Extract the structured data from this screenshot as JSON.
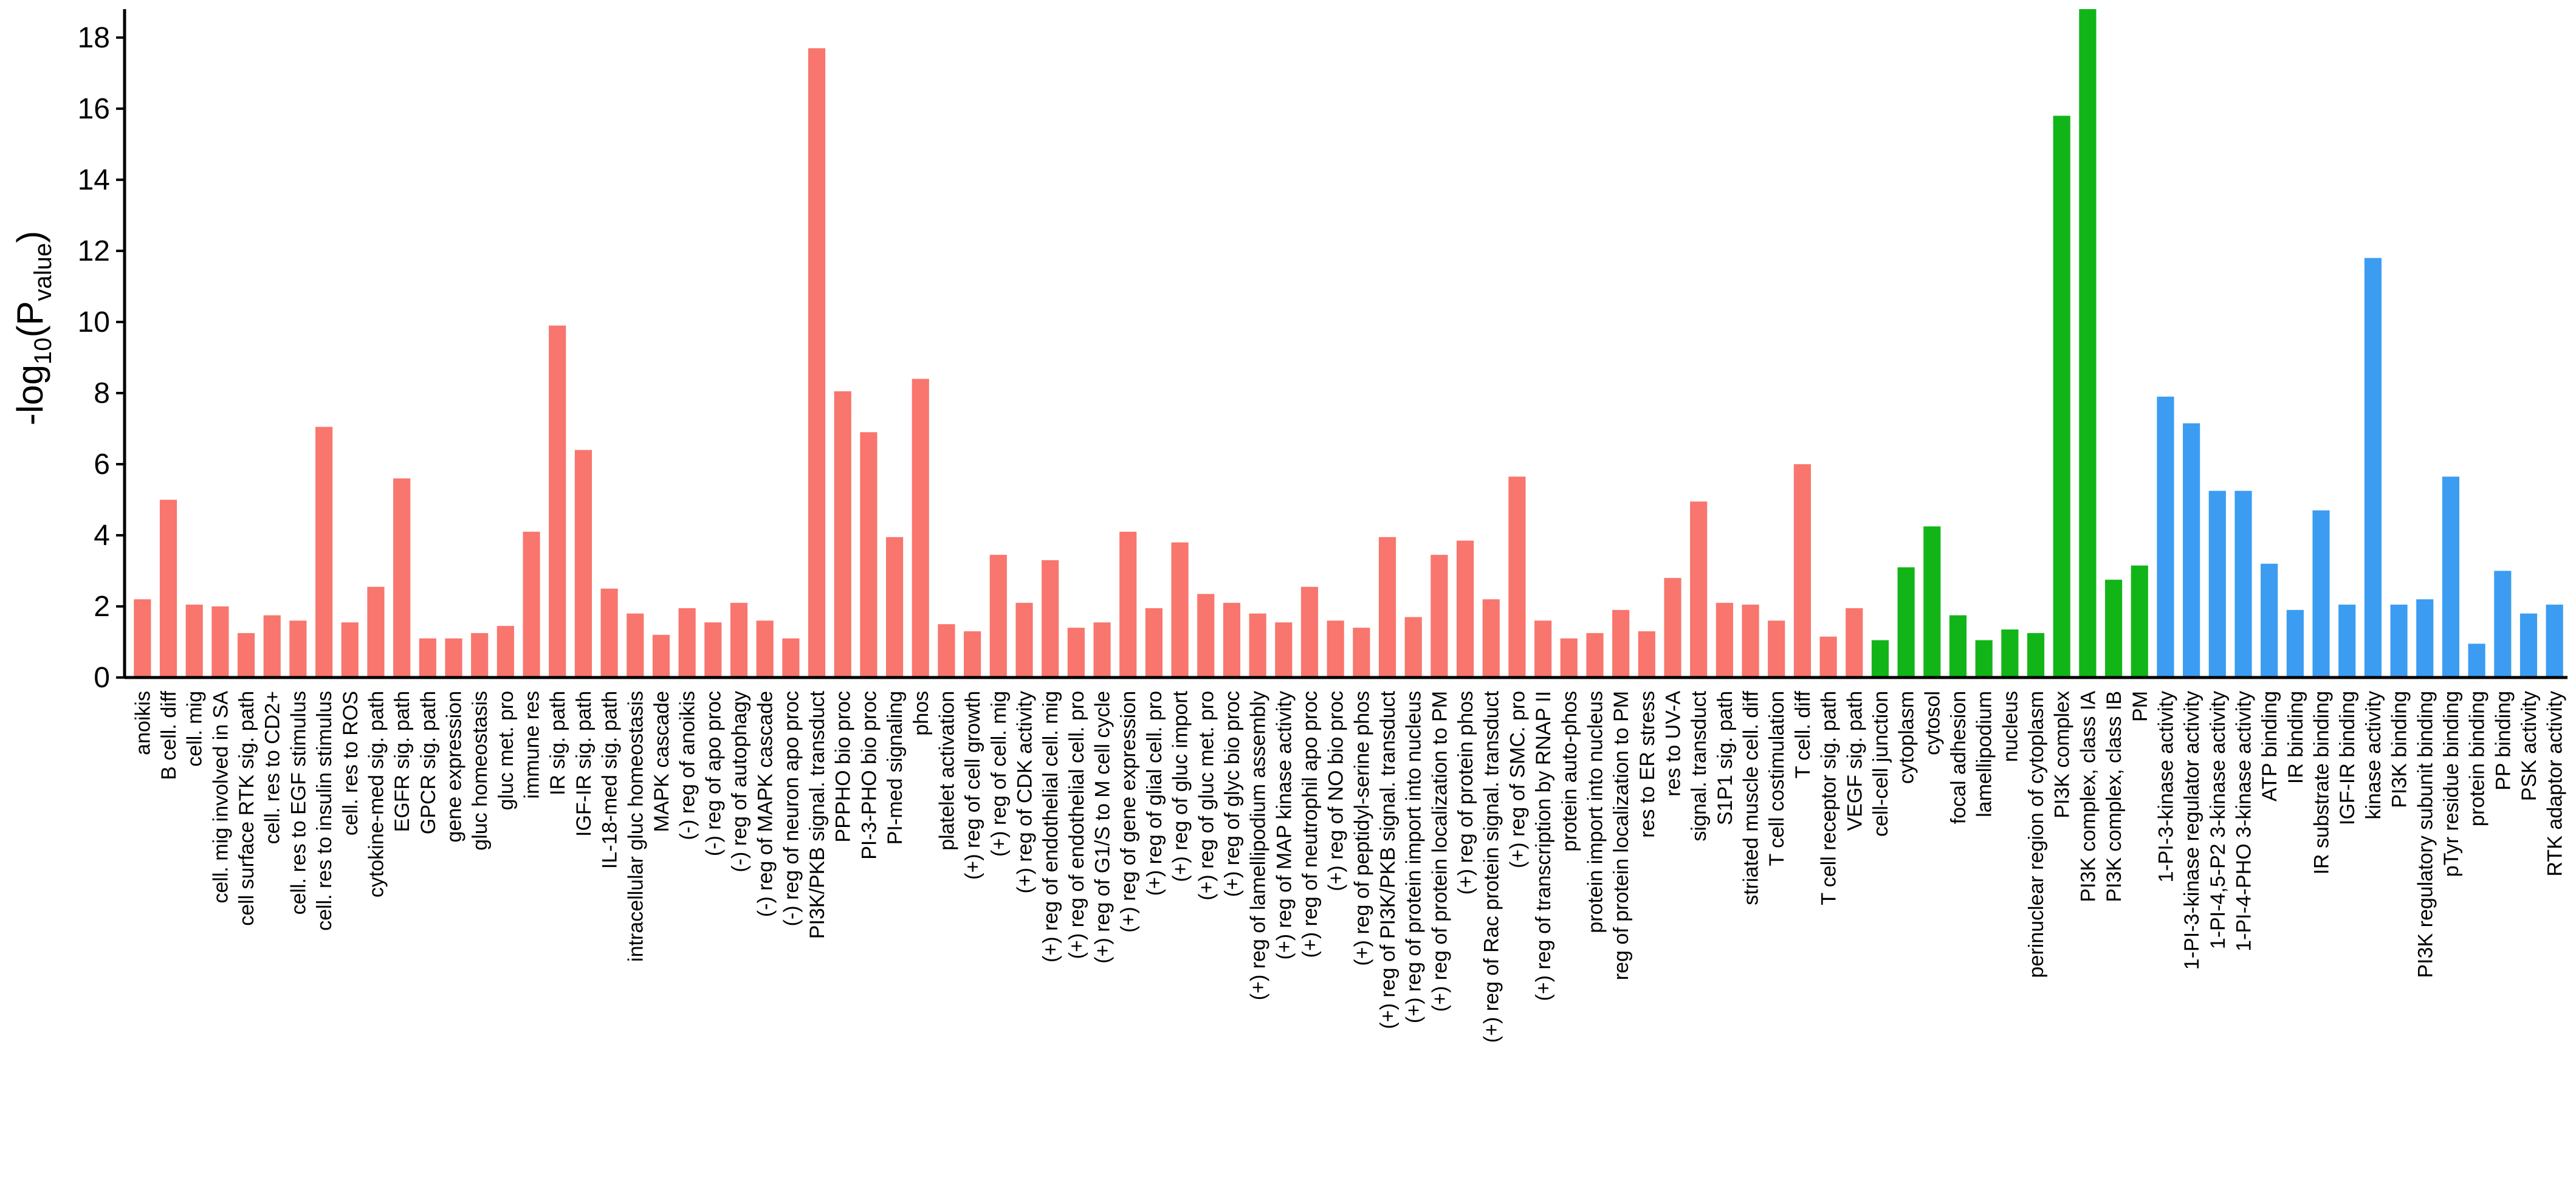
{
  "chart_data": {
    "type": "bar",
    "title": "",
    "xlabel": "",
    "ylabel": {
      "main": "-log",
      "sub_10": "10",
      "paren_open": "(P",
      "sub_value": "value",
      "paren_close": ")"
    },
    "ylim": [
      0,
      18.8
    ],
    "yticks": [
      0,
      2,
      4,
      6,
      8,
      10,
      12,
      14,
      16,
      18
    ],
    "grid": false,
    "legend": "none",
    "group_colors": {
      "red": "#f8766d",
      "green": "#12b518",
      "blue": "#3c9cf2"
    },
    "categories": [
      "anoikis",
      "B cell. diff",
      "cell. mig",
      "cell. mig involved in SA",
      "cell surface RTK sig. path",
      "cell. res to CD2+",
      "cell. res to EGF stimulus",
      "cell. res to insulin stimulus",
      "cell. res to ROS",
      "cytokine-med sig. path",
      "EGFR sig. path",
      "GPCR sig. path",
      "gene expression",
      "gluc homeostasis",
      "gluc met. pro",
      "immune res",
      "IR sig. path",
      "IGF-IR sig. path",
      "IL-18-med sig. path",
      "intracellular gluc homeostasis",
      "MAPK cascade",
      "(-) reg of anoikis",
      "(-) reg of apo proc",
      "(-) reg of autophagy",
      "(-) reg of MAPK cascade",
      "(-) reg of neuron apo proc",
      "PI3K/PKB signal. transduct",
      "PPPHO bio proc",
      "PI-3-PHO bio proc",
      "PI-med signaling",
      "phos",
      "platelet activation",
      "(+) reg of cell growth",
      "(+) reg of cell. mig",
      "(+) reg of CDK activity",
      "(+) reg of endothelial cell. mig",
      "(+) reg of endothelial cell. pro",
      "(+) reg of G1/S to M cell cycle",
      "(+) reg of gene expression",
      "(+) reg of glial cell. pro",
      "(+) reg of gluc import",
      "(+) reg of gluc met. pro",
      "(+) reg of glyc bio proc",
      "(+) reg of lamellipodium assembly",
      "(+) reg of MAP kinase activity",
      "(+) reg of neutrophil apo proc",
      "(+) reg of NO bio proc",
      "(+) reg of peptidyl-serine phos",
      "(+) reg of PI3K/PKB signal. transduct",
      "(+) reg of protein import into nucleus",
      "(+) reg of protein localization to PM",
      "(+) reg of protein phos",
      "(+) reg of Rac protein signal. transduct",
      "(+) reg of SMC. pro",
      "(+) reg of transcription by RNAP II",
      "protein auto-phos",
      "protein import into nucleus",
      "reg of protein localization to PM",
      "res to ER stress",
      "res to UV-A",
      "signal. transduct",
      "S1P1 sig. path",
      "striated muscle cell. diff",
      "T cell costimulation",
      "T cell. diff",
      "T cell receptor sig. path",
      "VEGF sig. path",
      "cell-cell junction",
      "cytoplasm",
      "cytosol",
      "focal adhesion",
      "lamellipodium",
      "nucleus",
      "perinuclear region of cytoplasm",
      "PI3K complex",
      "PI3K complex, class IA",
      "PI3K complex, class IB",
      "PM",
      "1-PI-3-kinase activity",
      "1-PI-3-kinase regulator activity",
      "1-PI-4,5-P2 3-kinase activity",
      "1-PI-4-PHO 3-kinase activity",
      "ATP binding",
      "IR binding",
      "IR substrate binding",
      "IGF-IR binding",
      "kinase activity",
      "PI3K binding",
      "PI3K regulatory subunit binding",
      "pTyr residue binding",
      "protein binding",
      "PP binding",
      "PSK activity",
      "RTK adaptor activity"
    ],
    "values": [
      2.2,
      5.0,
      2.05,
      2.0,
      1.25,
      1.75,
      1.6,
      7.05,
      1.55,
      2.55,
      5.6,
      1.1,
      1.1,
      1.25,
      1.45,
      4.1,
      9.9,
      6.4,
      2.5,
      1.8,
      1.2,
      1.95,
      1.55,
      2.1,
      1.6,
      1.1,
      17.7,
      8.05,
      6.9,
      3.95,
      8.4,
      1.5,
      1.3,
      3.45,
      2.1,
      3.3,
      1.4,
      1.55,
      4.1,
      1.95,
      3.8,
      2.35,
      2.1,
      1.8,
      1.55,
      2.55,
      1.6,
      1.4,
      3.95,
      1.7,
      3.45,
      3.85,
      2.2,
      5.65,
      1.6,
      1.1,
      1.25,
      1.9,
      1.3,
      2.8,
      4.95,
      2.1,
      2.05,
      1.6,
      6.0,
      1.15,
      1.95,
      1.05,
      3.1,
      4.25,
      1.75,
      1.05,
      1.35,
      1.25,
      15.8,
      18.8,
      2.75,
      3.15,
      7.9,
      7.15,
      5.25,
      5.25,
      3.2,
      1.9,
      4.7,
      2.05,
      11.8,
      2.05,
      2.2,
      5.65,
      0.95,
      3.0,
      1.8,
      2.05
    ],
    "groups": [
      "red",
      "red",
      "red",
      "red",
      "red",
      "red",
      "red",
      "red",
      "red",
      "red",
      "red",
      "red",
      "red",
      "red",
      "red",
      "red",
      "red",
      "red",
      "red",
      "red",
      "red",
      "red",
      "red",
      "red",
      "red",
      "red",
      "red",
      "red",
      "red",
      "red",
      "red",
      "red",
      "red",
      "red",
      "red",
      "red",
      "red",
      "red",
      "red",
      "red",
      "red",
      "red",
      "red",
      "red",
      "red",
      "red",
      "red",
      "red",
      "red",
      "red",
      "red",
      "red",
      "red",
      "red",
      "red",
      "red",
      "red",
      "red",
      "red",
      "red",
      "red",
      "red",
      "red",
      "red",
      "red",
      "red",
      "red",
      "green",
      "green",
      "green",
      "green",
      "green",
      "green",
      "green",
      "green",
      "green",
      "green",
      "green",
      "blue",
      "blue",
      "blue",
      "blue",
      "blue",
      "blue",
      "blue",
      "blue",
      "blue",
      "blue",
      "blue",
      "blue",
      "blue",
      "blue",
      "blue",
      "blue"
    ]
  }
}
